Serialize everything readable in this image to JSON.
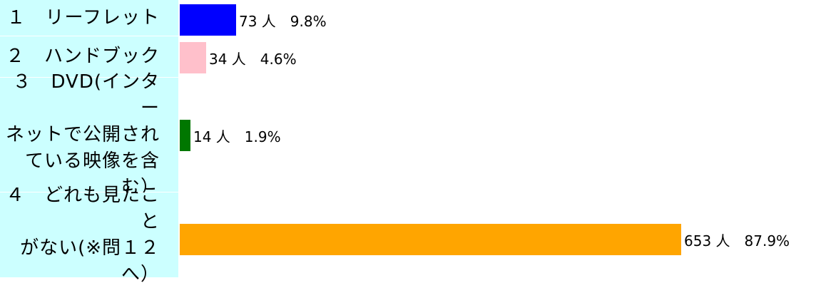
{
  "chart_data": {
    "type": "bar",
    "orientation": "horizontal",
    "categories": [
      "１　リーフレット",
      "２　ハンドブック",
      "３　DVD(インターネットで公開されている映像を含む）",
      "４　どれも見たことがない(※問１２へ）"
    ],
    "category_lines": [
      [
        "１　リーフレット"
      ],
      [
        "２　ハンドブック"
      ],
      [
        "３　DVD(インター",
        "ネットで公開され",
        "ている映像を含",
        "む）"
      ],
      [
        "４　どれも見たこと",
        "がない(※問１２",
        "へ）"
      ]
    ],
    "values": [
      73,
      34,
      14,
      653
    ],
    "percents": [
      "9.8%",
      "4.6%",
      "1.9%",
      "87.9%"
    ],
    "value_labels": [
      "73 人　9.8%",
      "34 人　4.6%",
      "14 人　1.9%",
      "653 人　87.9%"
    ],
    "colors": [
      "#0000ff",
      "#ffc0cb",
      "#007700",
      "#ffa500"
    ],
    "label_background": "#ccffff"
  }
}
